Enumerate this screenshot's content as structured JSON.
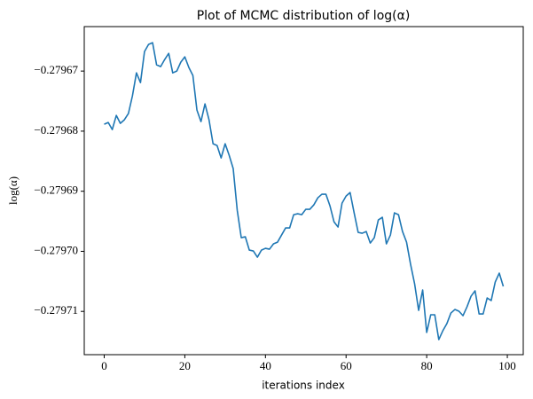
{
  "chart_data": {
    "type": "line",
    "title": "Plot of MCMC distribution of log(α)",
    "xlabel": "iterations index",
    "ylabel": "log(α)",
    "color": "#1f77b4",
    "x": [
      0,
      1,
      2,
      3,
      4,
      5,
      6,
      7,
      8,
      9,
      10,
      11,
      12,
      13,
      14,
      15,
      16,
      17,
      18,
      19,
      20,
      21,
      22,
      23,
      24,
      25,
      26,
      27,
      28,
      29,
      30,
      31,
      32,
      33,
      34,
      35,
      36,
      37,
      38,
      39,
      40,
      41,
      42,
      43,
      44,
      45,
      46,
      47,
      48,
      49,
      50,
      51,
      52,
      53,
      54,
      55,
      56,
      57,
      58,
      59,
      60,
      61,
      62,
      63,
      64,
      65,
      66,
      67,
      68,
      69,
      70,
      71,
      72,
      73,
      74,
      75,
      76,
      77,
      78,
      79,
      80,
      81,
      82,
      83,
      84,
      85,
      86,
      87,
      88,
      89,
      90,
      91,
      92,
      93,
      94,
      95,
      96,
      97,
      98,
      99
    ],
    "values": [
      -0.27967885,
      -0.27967856,
      -0.27967974,
      -0.27967738,
      -0.2796787,
      -0.27967811,
      -0.27967708,
      -0.27967413,
      -0.2796703,
      -0.27967192,
      -0.27966675,
      -0.27966557,
      -0.27966528,
      -0.27966897,
      -0.27966926,
      -0.27966808,
      -0.27966705,
      -0.2796703,
      -0.27967,
      -0.27966852,
      -0.27966764,
      -0.27966941,
      -0.27967074,
      -0.27967649,
      -0.27967841,
      -0.27967546,
      -0.27967811,
      -0.2796821,
      -0.27968239,
      -0.27968446,
      -0.2796821,
      -0.27968401,
      -0.27968623,
      -0.27969316,
      -0.27969773,
      -0.27969758,
      -0.2796998,
      -0.27969994,
      -0.27970098,
      -0.2796998,
      -0.2796995,
      -0.27969965,
      -0.27969876,
      -0.27969847,
      -0.27969729,
      -0.27969611,
      -0.27969611,
      -0.2796939,
      -0.27969375,
      -0.2796939,
      -0.27969301,
      -0.27969301,
      -0.27969227,
      -0.27969109,
      -0.2796905,
      -0.2796905,
      -0.27969242,
      -0.27969508,
      -0.27969596,
      -0.27969198,
      -0.2796908,
      -0.27969021,
      -0.2796936,
      -0.27969685,
      -0.27969699,
      -0.2796967,
      -0.27969862,
      -0.27969773,
      -0.27969478,
      -0.27969434,
      -0.27969876,
      -0.27969729,
      -0.2796936,
      -0.2796939,
      -0.2796967,
      -0.27969847,
      -0.27970216,
      -0.2797054,
      -0.27970983,
      -0.27970643,
      -0.27971351,
      -0.27971056,
      -0.27971056,
      -0.27971469,
      -0.27971322,
      -0.27971204,
      -0.27971027,
      -0.27970968,
      -0.27970997,
      -0.27971071,
      -0.27970924,
      -0.27970747,
      -0.27970658,
      -0.27971042,
      -0.27971042,
      -0.27970776,
      -0.2797082,
      -0.27970511,
      -0.27970363,
      -0.27970584
    ],
    "xlim": [
      -4.95,
      103.95
    ],
    "xticks": [
      0,
      20,
      40,
      60,
      80,
      100
    ],
    "ylim": [
      -0.2797172,
      -0.2796626
    ],
    "yticks": [
      {
        "value": -0.27967,
        "label": "−0.27967"
      },
      {
        "value": -0.27968,
        "label": "−0.27968"
      },
      {
        "value": -0.27969,
        "label": "−0.27969"
      },
      {
        "value": -0.2797,
        "label": "−0.27970"
      },
      {
        "value": -0.27971,
        "label": "−0.27971"
      }
    ]
  }
}
